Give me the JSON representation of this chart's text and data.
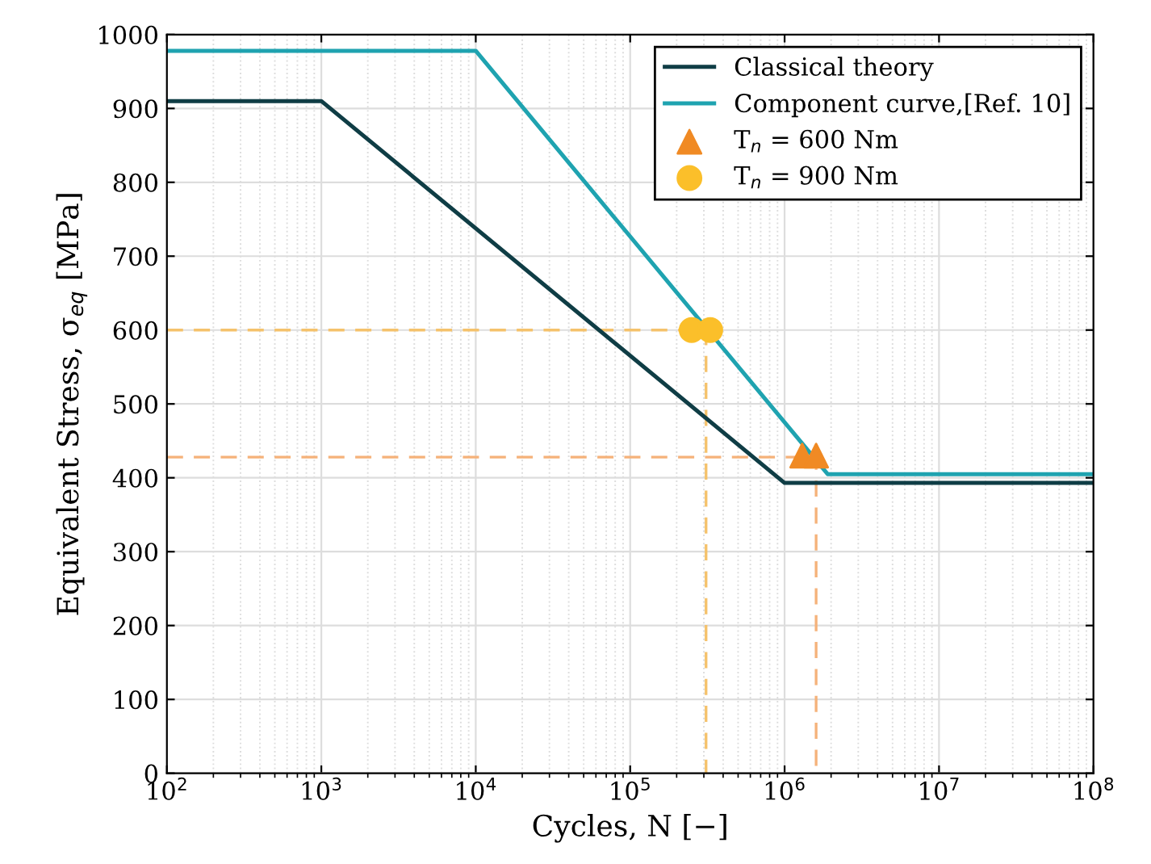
{
  "chart_data": {
    "type": "line",
    "xlabel": "Cycles, N [−]",
    "ylabel": "Equivalent Stress, σ$_{eq}$ [MPa]",
    "log": "x",
    "xlim": [
      100,
      100000000
    ],
    "xticks": [
      {
        "value": 100,
        "label": "10$^{2}$"
      },
      {
        "value": 1000,
        "label": "10$^{3}$"
      },
      {
        "value": 10000,
        "label": "10$^{4}$"
      },
      {
        "value": 100000,
        "label": "10$^{5}$"
      },
      {
        "value": 1000000,
        "label": "10$^{6}$"
      },
      {
        "value": 10000000,
        "label": "10$^{7}$"
      },
      {
        "value": 100000000,
        "label": "10$^{8}$"
      }
    ],
    "ylim": [
      0,
      1000
    ],
    "yticks": [
      0,
      100,
      200,
      300,
      400,
      500,
      600,
      700,
      800,
      900,
      1000
    ],
    "grid": true,
    "legend": "top right",
    "series": [
      {
        "line_style": "dashed",
        "color": "#f5c26b",
        "x": [
          100,
          310000,
          310000
        ],
        "values": [
          600,
          600,
          0
        ]
      },
      {
        "line_style": "dashed",
        "color": "#f5b27a",
        "x": [
          100,
          1600000,
          1600000
        ],
        "values": [
          428,
          428,
          0
        ]
      },
      {
        "name": "Classical theory",
        "color": "#0f3d45",
        "x": [
          100,
          1000,
          1000000,
          100000000
        ],
        "values": [
          910,
          910,
          393,
          393
        ]
      },
      {
        "name": "Component curve,[Ref. 10]",
        "color": "#1fa3b0",
        "x": [
          100,
          10000,
          1900000,
          100000000
        ],
        "values": [
          978,
          978,
          405,
          405
        ]
      },
      {
        "name": "T$_{n}$ = 600 Nm",
        "type": "scatter",
        "marker": "triangle",
        "color": "#f08a24",
        "x": [
          1300000,
          1600000
        ],
        "values": [
          430,
          430
        ]
      },
      {
        "name": "T$_{n}$ = 900 Nm",
        "type": "scatter",
        "marker": "circle",
        "color": "#fbbf2a",
        "x": [
          250000,
          330000
        ],
        "values": [
          600,
          600
        ]
      }
    ]
  }
}
